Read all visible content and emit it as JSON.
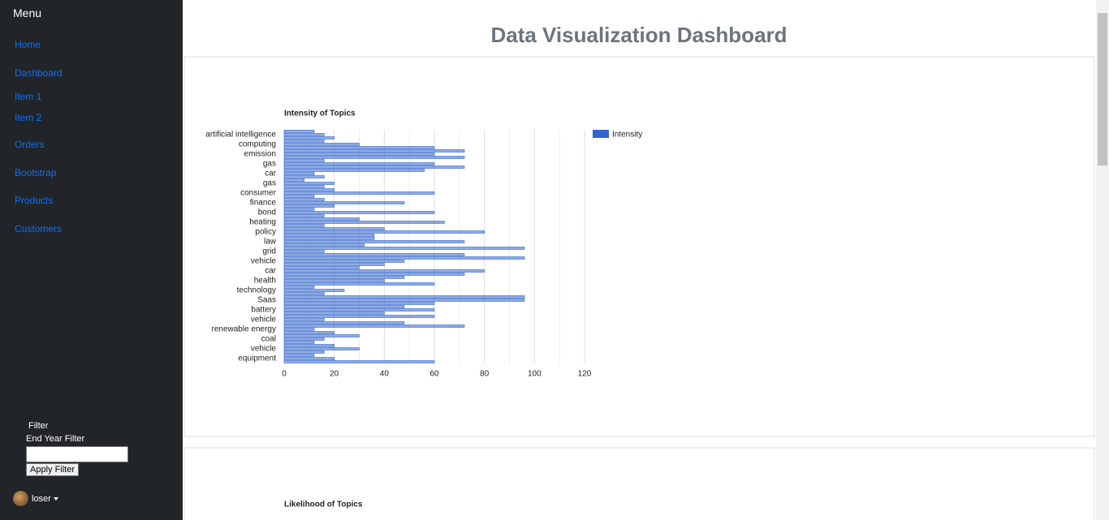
{
  "sidebar": {
    "title": "Menu",
    "links": [
      "Home",
      "Dashboard",
      "Item 1",
      "Item 2",
      "Orders",
      "Bootstrap",
      "Products",
      "Customers"
    ]
  },
  "filter": {
    "title": "Filter",
    "label": "End Year Filter",
    "button": "Apply Filter"
  },
  "user": {
    "name": "loser"
  },
  "header": {
    "title": "Data Visualization Dashboard"
  },
  "chart_data": [
    {
      "type": "bar",
      "orientation": "horizontal",
      "title": "Intensity of Topics",
      "categories": [
        null,
        "artificial intelligence",
        null,
        null,
        "computing",
        null,
        null,
        "emission",
        null,
        null,
        "gas",
        null,
        null,
        "car",
        null,
        null,
        "gas",
        null,
        null,
        "consumer",
        null,
        null,
        "finance",
        null,
        null,
        "bond",
        null,
        null,
        "heating",
        null,
        null,
        "policy",
        null,
        null,
        "law",
        null,
        null,
        "grid",
        null,
        null,
        "vehicle",
        null,
        null,
        "car",
        null,
        null,
        "health",
        null,
        null,
        "technology",
        null,
        null,
        "Saas",
        null,
        null,
        "battery",
        null,
        null,
        "vehicle",
        null,
        null,
        "renewable energy",
        null,
        null,
        "coal",
        null,
        null,
        "vehicle",
        null,
        null,
        "equipment",
        null
      ],
      "series": [
        {
          "name": "Intensity",
          "color": "#3366cc",
          "values": [
            12,
            16,
            20,
            16,
            30,
            60,
            72,
            60,
            72,
            16,
            60,
            72,
            56,
            12,
            16,
            8,
            20,
            16,
            20,
            60,
            12,
            16,
            48,
            20,
            12,
            60,
            16,
            30,
            64,
            16,
            40,
            80,
            36,
            36,
            72,
            32,
            96,
            16,
            72,
            96,
            48,
            40,
            30,
            80,
            72,
            48,
            40,
            60,
            12,
            24,
            16,
            96,
            96,
            60,
            48,
            60,
            40,
            60,
            16,
            48,
            72,
            12,
            20,
            30,
            16,
            12,
            20,
            30,
            16,
            12,
            20,
            60
          ]
        }
      ],
      "xlim": [
        0,
        120
      ],
      "xticks": [
        0,
        20,
        40,
        60,
        80,
        100,
        120
      ],
      "minor_xticks": [
        10,
        30,
        50,
        70,
        90,
        110
      ],
      "grid": true,
      "legend": "right"
    },
    {
      "type": "bar",
      "title": "Likelihood of Topics"
    }
  ]
}
